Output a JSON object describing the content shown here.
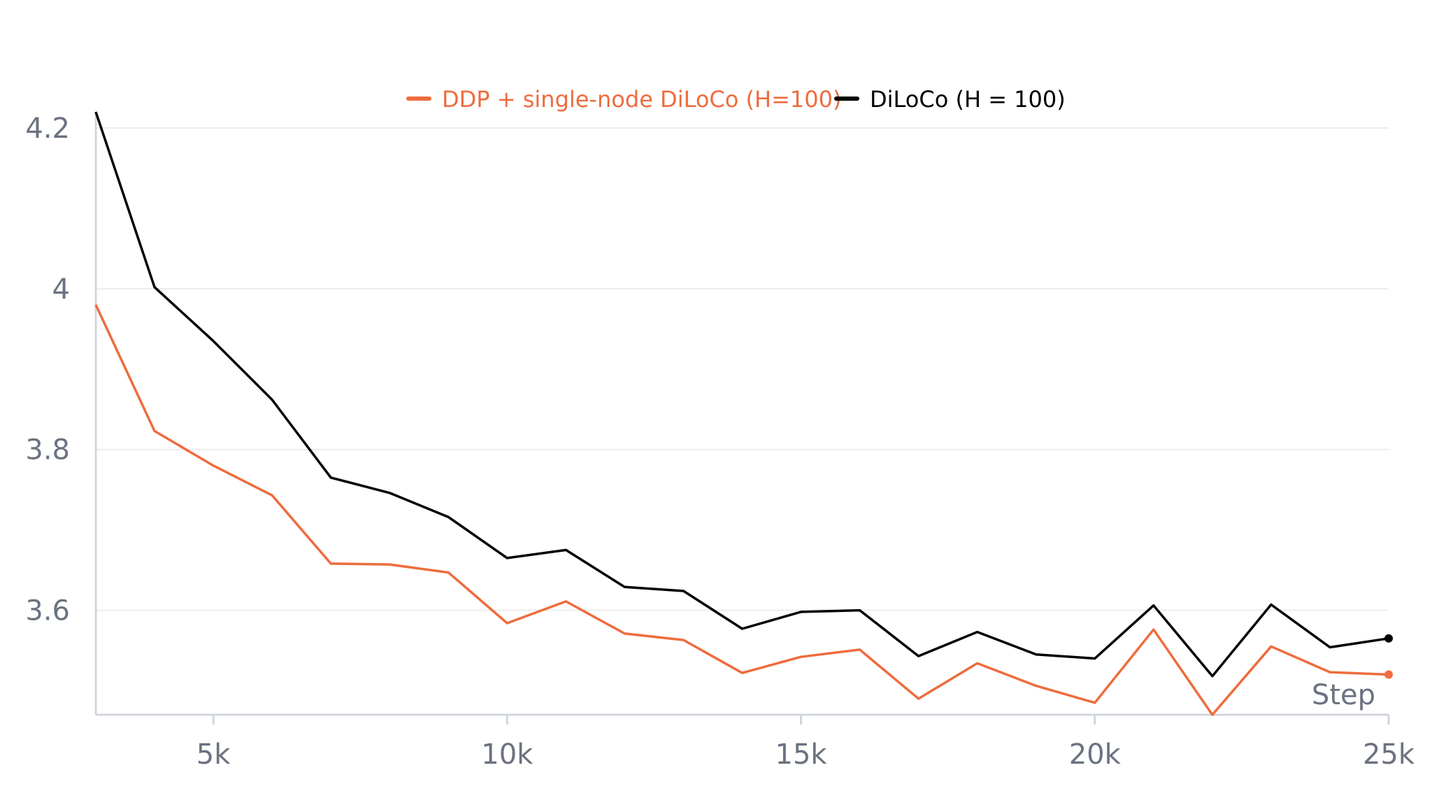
{
  "chart_data": {
    "type": "line",
    "title": "",
    "xlabel": "Step",
    "ylabel": "",
    "xlim": [
      3000,
      25000
    ],
    "ylim": [
      3.47,
      4.22
    ],
    "grid": true,
    "legend_position": "top-center",
    "x_ticks": [
      {
        "value": 5000,
        "label": "5k"
      },
      {
        "value": 10000,
        "label": "10k"
      },
      {
        "value": 15000,
        "label": "15k"
      },
      {
        "value": 20000,
        "label": "20k"
      },
      {
        "value": 25000,
        "label": "25k"
      }
    ],
    "y_ticks": [
      {
        "value": 3.6,
        "label": "3.6"
      },
      {
        "value": 3.8,
        "label": "3.8"
      },
      {
        "value": 4.0,
        "label": "4"
      },
      {
        "value": 4.2,
        "label": "4.2"
      }
    ],
    "x": [
      3000,
      4000,
      5000,
      6000,
      7000,
      8000,
      9000,
      10000,
      11000,
      12000,
      13000,
      14000,
      15000,
      16000,
      17000,
      18000,
      19000,
      20000,
      21000,
      22000,
      23000,
      24000,
      25000
    ],
    "series": [
      {
        "name": "DDP + single-node DiLoCo (H=100)",
        "color": "#ee6c3e",
        "values": [
          3.98,
          3.823,
          3.78,
          3.743,
          3.658,
          3.657,
          3.647,
          3.584,
          3.611,
          3.571,
          3.563,
          3.522,
          3.542,
          3.551,
          3.49,
          3.534,
          3.506,
          3.485,
          3.576,
          3.47,
          3.555,
          3.523,
          3.52
        ]
      },
      {
        "name": "DiLoCo (H = 100)",
        "color": "#000000",
        "values": [
          4.22,
          4.002,
          3.935,
          3.862,
          3.765,
          3.746,
          3.716,
          3.665,
          3.675,
          3.629,
          3.624,
          3.577,
          3.598,
          3.6,
          3.543,
          3.573,
          3.545,
          3.54,
          3.606,
          3.518,
          3.607,
          3.554,
          3.565
        ]
      }
    ]
  }
}
